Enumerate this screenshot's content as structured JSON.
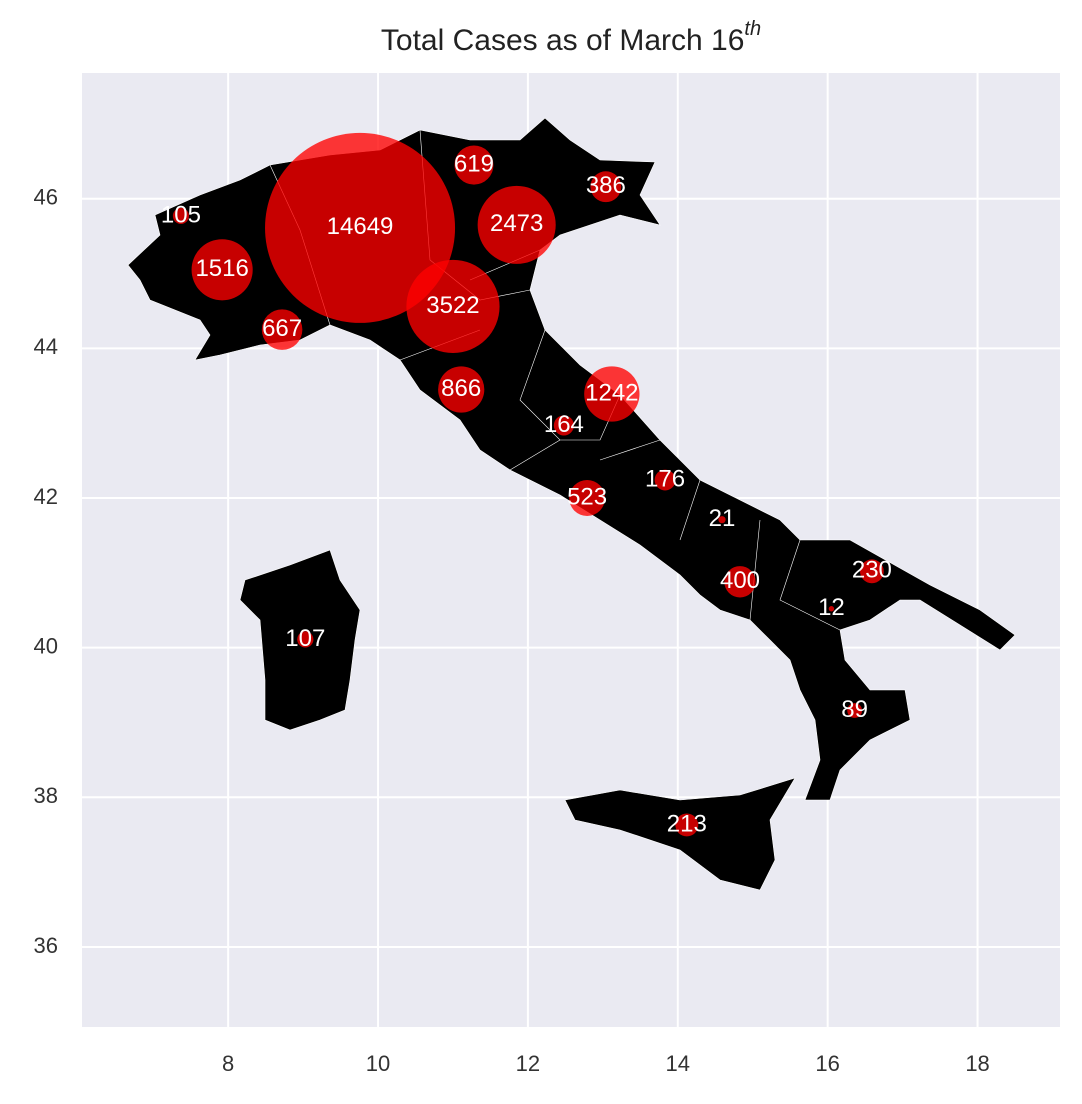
{
  "chart_data": {
    "type": "bubble",
    "title": "Total Cases as of March 16",
    "title_superscript": "th",
    "x": [
      9.76,
      11.0,
      11.85,
      7.92,
      13.12,
      11.11,
      8.72,
      11.28,
      12.79,
      14.83,
      13.04,
      16.59,
      14.12,
      13.83,
      12.48,
      9.03,
      7.37,
      16.36,
      14.59,
      16.05
    ],
    "y": [
      45.61,
      44.56,
      45.65,
      45.05,
      43.39,
      43.45,
      44.25,
      46.45,
      42.0,
      40.88,
      46.16,
      41.02,
      37.63,
      42.24,
      42.97,
      40.11,
      45.77,
      39.16,
      41.71,
      40.52
    ],
    "values": [
      14649,
      3522,
      2473,
      1516,
      1242,
      866,
      667,
      619,
      523,
      400,
      386,
      230,
      213,
      176,
      164,
      107,
      105,
      89,
      21,
      12
    ],
    "color": "#ff0000",
    "xlim": [
      6.05,
      19.1
    ],
    "xticks": [
      8,
      10,
      12,
      14,
      16,
      18
    ],
    "ylim": [
      34.93,
      47.68
    ],
    "yticks": [
      36,
      38,
      40,
      42,
      44,
      46
    ],
    "grid": true
  }
}
